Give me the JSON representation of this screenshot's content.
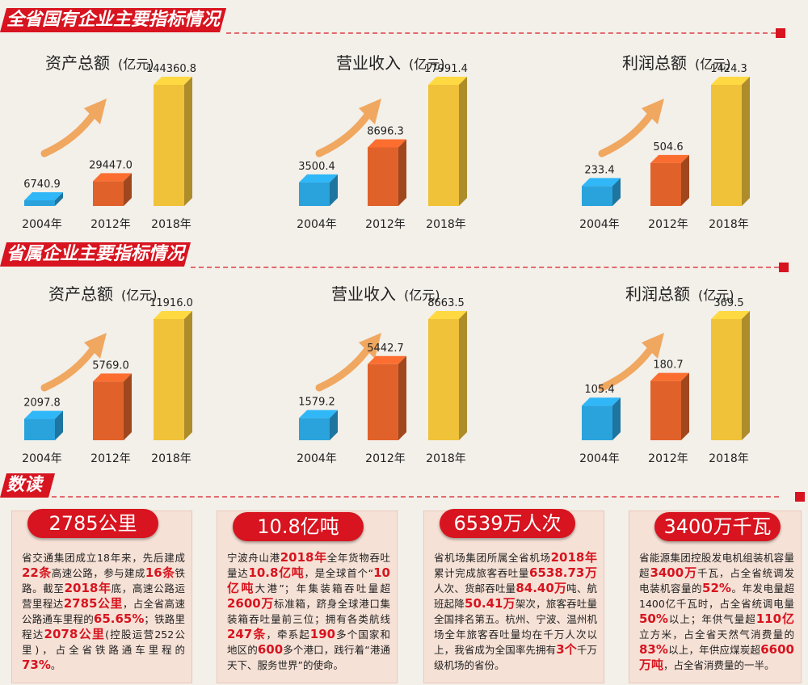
{
  "sections": {
    "state": "全省国有企业主要指标情况",
    "provincial": "省属企业主要指标情况",
    "reading": "数读"
  },
  "unit": "(亿元)",
  "colors": {
    "accent": "#d7141f",
    "blue": "#2aa3dd",
    "orange": "#e0622a",
    "gold": "#f0c23a",
    "arrow": "#f0a760"
  },
  "chart_data": [
    {
      "type": "bar",
      "title": "资产总额",
      "unit": "(亿元)",
      "categories": [
        "2004年",
        "2012年",
        "2018年"
      ],
      "values": [
        6740.9,
        29447.0,
        144360.8
      ],
      "labels": [
        "6740.9",
        "29447.0",
        "144360.8"
      ]
    },
    {
      "type": "bar",
      "title": "营业收入",
      "unit": "(亿元)",
      "categories": [
        "2004年",
        "2012年",
        "2018年"
      ],
      "values": [
        3500.4,
        8696.3,
        17991.4
      ],
      "labels": [
        "3500.4",
        "8696.3",
        "17991.4"
      ]
    },
    {
      "type": "bar",
      "title": "利润总额",
      "unit": "(亿元)",
      "categories": [
        "2004年",
        "2012年",
        "2018年"
      ],
      "values": [
        233.4,
        504.6,
        1424.3
      ],
      "labels": [
        "233.4",
        "504.6",
        "1424.3"
      ]
    },
    {
      "type": "bar",
      "title": "资产总额",
      "unit": "(亿元)",
      "categories": [
        "2004年",
        "2012年",
        "2018年"
      ],
      "values": [
        2097.8,
        5769.0,
        11916.0
      ],
      "labels": [
        "2097.8",
        "5769.0",
        "11916.0"
      ]
    },
    {
      "type": "bar",
      "title": "营业收入",
      "unit": "(亿元)",
      "categories": [
        "2004年",
        "2012年",
        "2018年"
      ],
      "values": [
        1579.2,
        5442.7,
        8663.5
      ],
      "labels": [
        "1579.2",
        "5442.7",
        "8663.5"
      ]
    },
    {
      "type": "bar",
      "title": "利润总额",
      "unit": "(亿元)",
      "categories": [
        "2004年",
        "2012年",
        "2018年"
      ],
      "values": [
        105.4,
        180.7,
        369.5
      ],
      "labels": [
        "105.4",
        "180.7",
        "369.5"
      ]
    }
  ],
  "cards": [
    {
      "title": "2785公里",
      "segments": [
        [
          "省交通集团成立18年来，先后建成",
          false
        ],
        [
          "22条",
          true
        ],
        [
          "高速公路，参与建成",
          false
        ],
        [
          "16条",
          true
        ],
        [
          "铁路。截至",
          false
        ],
        [
          "2018年",
          true
        ],
        [
          "底，高速公路运营里程达",
          false
        ],
        [
          "2785公里",
          true
        ],
        [
          "，占全省高速公路通车里程的",
          false
        ],
        [
          "65.65%",
          true
        ],
        [
          "；铁路里程达",
          false
        ],
        [
          "2078公里",
          true
        ],
        [
          "(控股运营252公里)，占全省铁路通车里程的",
          false
        ],
        [
          "73%",
          true
        ],
        [
          "。",
          false
        ]
      ]
    },
    {
      "title": "10.8亿吨",
      "segments": [
        [
          "宁波舟山港",
          false
        ],
        [
          "2018年",
          true
        ],
        [
          "全年货物吞吐量达",
          false
        ],
        [
          "10.8亿吨",
          true
        ],
        [
          "，是全球首个“",
          false
        ],
        [
          "10亿吨",
          true
        ],
        [
          "大港”；年集装箱吞吐量超",
          false
        ],
        [
          "2600万",
          true
        ],
        [
          "标准箱，跻身全球港口集装箱吞吐量前三位；拥有各类航线",
          false
        ],
        [
          "247条",
          true
        ],
        [
          "，牵系起",
          false
        ],
        [
          "190",
          true
        ],
        [
          "多个国家和地区的",
          false
        ],
        [
          "600",
          true
        ],
        [
          "多个港口，践行着“港通天下、服务世界”的使命。",
          false
        ]
      ]
    },
    {
      "title": "6539万人次",
      "segments": [
        [
          "省机场集团所属全省机场",
          false
        ],
        [
          "2018年",
          true
        ],
        [
          "累计完成旅客吞吐量",
          false
        ],
        [
          "6538.73万",
          true
        ],
        [
          "人次、货邮吞吐量",
          false
        ],
        [
          "84.40万",
          true
        ],
        [
          "吨、航班起降",
          false
        ],
        [
          "50.41万",
          true
        ],
        [
          "架次，旅客吞吐量全国排名第五。杭州、宁波、温州机场全年旅客吞吐量均在千万人次以上，我省成为全国率先拥有",
          false
        ],
        [
          "3个",
          true
        ],
        [
          "千万级机场的省份。",
          false
        ]
      ]
    },
    {
      "title": "3400万千瓦",
      "segments": [
        [
          "省能源集团控股发电机组装机容量超",
          false
        ],
        [
          "3400万",
          true
        ],
        [
          "千瓦，占全省统调发电装机容量的",
          false
        ],
        [
          "52%",
          true
        ],
        [
          "。年发电量超1400亿千瓦时，占全省统调电量",
          false
        ],
        [
          "50%",
          true
        ],
        [
          "以上；年供气量超",
          false
        ],
        [
          "110亿",
          true
        ],
        [
          "立方米，占全省天然气消费量的",
          false
        ],
        [
          "83%",
          true
        ],
        [
          "以上，年供应煤炭超",
          false
        ],
        [
          "6600万吨",
          true
        ],
        [
          "，占全省消费量的一半。",
          false
        ]
      ]
    }
  ]
}
